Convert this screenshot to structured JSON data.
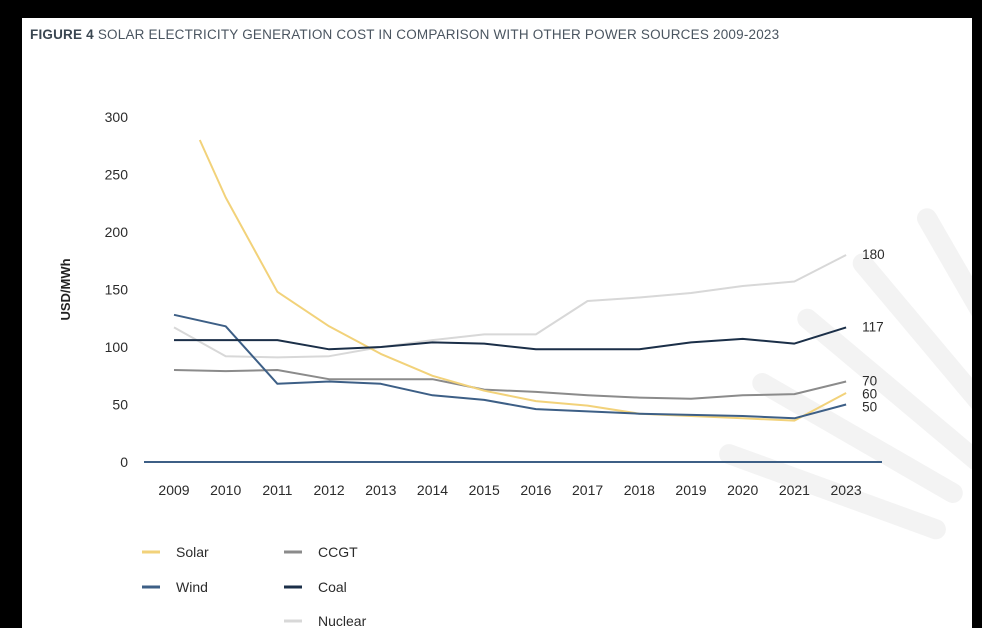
{
  "figure": {
    "label": "FIGURE 4",
    "title": "SOLAR ELECTRICITY GENERATION COST IN COMPARISON WITH OTHER POWER SOURCES 2009-2023"
  },
  "chart_data": {
    "type": "line",
    "title": "FIGURE 4 SOLAR ELECTRICITY GENERATION COST IN COMPARISON WITH OTHER POWER SOURCES 2009-2023",
    "xlabel": "",
    "ylabel": "USD/MWh",
    "categories": [
      "2009",
      "2010",
      "2011",
      "2012",
      "2013",
      "2014",
      "2015",
      "2016",
      "2017",
      "2018",
      "2019",
      "2020",
      "2021",
      "2023"
    ],
    "ylim": [
      0,
      300
    ],
    "yticks": [
      0,
      50,
      100,
      150,
      200,
      250,
      300
    ],
    "grid": false,
    "legend_position": "bottom-left",
    "series": [
      {
        "name": "Solar",
        "color": "#f2d27a",
        "start_x": 0.5,
        "values": [
          280,
          230,
          148,
          118,
          94,
          75,
          62,
          53,
          49,
          42,
          40,
          38,
          36,
          60
        ],
        "end_label": "60"
      },
      {
        "name": "Wind",
        "color": "#3d5f86",
        "start_x": 0,
        "values": [
          128,
          118,
          68,
          70,
          68,
          58,
          54,
          46,
          44,
          42,
          41,
          40,
          38,
          50
        ],
        "end_label": "50"
      },
      {
        "name": "Nuclear",
        "color": "#d8d8d8",
        "start_x": 0,
        "values": [
          117,
          92,
          91,
          92,
          100,
          106,
          111,
          111,
          140,
          143,
          147,
          153,
          157,
          180
        ],
        "end_label": "180"
      },
      {
        "name": "CCGT",
        "color": "#8b8b8b",
        "start_x": 0,
        "values": [
          80,
          79,
          80,
          72,
          72,
          72,
          63,
          61,
          58,
          56,
          55,
          58,
          59,
          70
        ],
        "end_label": "70"
      },
      {
        "name": "Coal",
        "color": "#1b2f48",
        "start_x": 0,
        "values": [
          106,
          106,
          106,
          98,
          100,
          104,
          103,
          98,
          98,
          98,
          104,
          107,
          103,
          117
        ],
        "end_label": "117"
      }
    ],
    "legend": [
      {
        "name": "Solar",
        "color": "#f2d27a"
      },
      {
        "name": "Wind",
        "color": "#3d5f86"
      },
      {
        "name": "CCGT",
        "color": "#8b8b8b"
      },
      {
        "name": "Coal",
        "color": "#1b2f48"
      },
      {
        "name": "Nuclear",
        "color": "#d8d8d8"
      }
    ],
    "baseline_color": "#3d5f86"
  }
}
